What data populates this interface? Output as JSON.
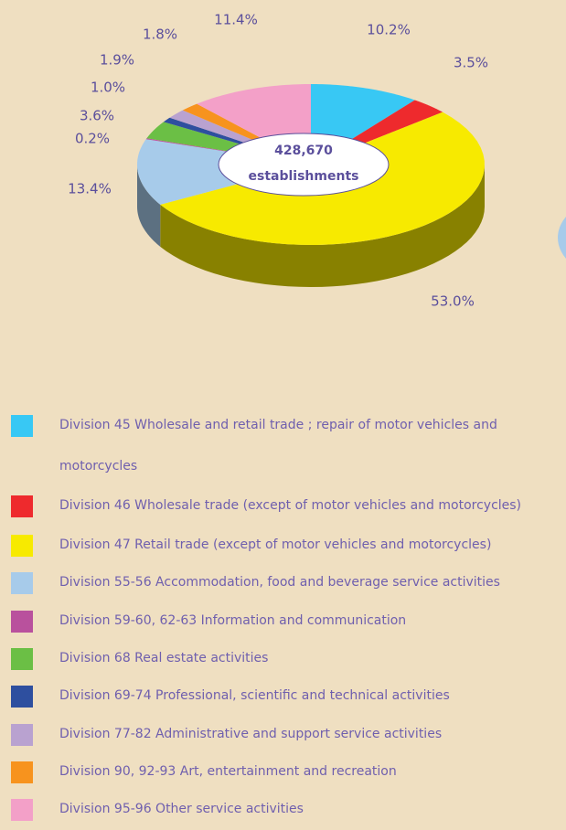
{
  "chart_data": {
    "type": "pie",
    "categories": [
      "Division 45 Wholesale and retail trade ; repair of motor vehicles and motorcycles",
      "Division 46 Wholesale trade (except of motor vehicles and motorcycles)",
      "Division 47 Retail trade (except of motor vehicles and motorcycles)",
      "Division 55-56 Accommodation, food and beverage service activities",
      "Division 59-60, 62-63 Information and communication",
      "Division 68 Real estate activities",
      "Division 69-74 Professional, scientific and technical activities",
      "Division 77-82 Administrative and support service activities",
      "Division 90, 92-93 Art, entertainment and recreation",
      "Division 95-96 Other service activities"
    ],
    "values": [
      10.2,
      3.5,
      53.0,
      13.4,
      0.2,
      3.6,
      1.0,
      1.9,
      1.8,
      11.4
    ],
    "value_labels": [
      "10.2%",
      "3.5%",
      "53.0%",
      "13.4%",
      "0.2%",
      "3.6%",
      "1.0%",
      "1.9%",
      "1.8%",
      "11.4%"
    ],
    "colors": [
      "#38c8f4",
      "#ee2a2d",
      "#f7ea00",
      "#a7cbea",
      "#b9519d",
      "#6bbf45",
      "#2e4f9f",
      "#b9a2d0",
      "#f7931e",
      "#f3a0c8"
    ],
    "center_label": [
      "428,670",
      "establishments"
    ]
  }
}
